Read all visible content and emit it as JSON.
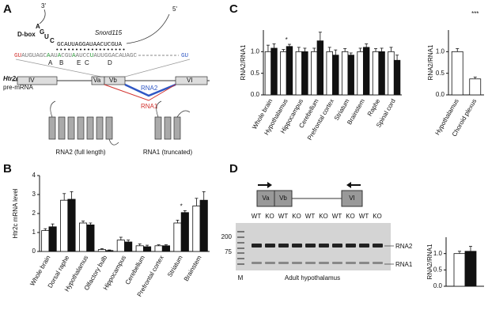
{
  "panel_labels": [
    "A",
    "B",
    "C",
    "D"
  ],
  "diagram_a": {
    "three_prime": "3'",
    "dbox": "D-box",
    "loop_letters": [
      "A",
      "G",
      "U",
      "C"
    ],
    "snord": "Snord115",
    "five_prime": "5'",
    "snord_seq": "GCAUUAGGAUAACUCGUA",
    "mrna_seq": [
      "GU",
      "AUGUAGC",
      "A",
      "AU",
      "A",
      "CGU",
      "A",
      "AUCC",
      "U",
      "AUUGGACAUAGC"
    ],
    "splice_right": "GU",
    "sites": [
      "A",
      "B",
      "E",
      "C",
      "D"
    ],
    "gene": "Htr2c",
    "gene_sub": "pre-mRNA",
    "exons": [
      "IV",
      "Va",
      "Vb",
      "VI"
    ],
    "rna2": "RNA2",
    "rna1": "RNA1",
    "protein_full": "RNA2 (full length)",
    "protein_trunc": "RNA1 (truncated)"
  },
  "panel_d": {
    "exons": [
      "Va",
      "Vb",
      "VI"
    ],
    "ladder": [
      "200",
      "75"
    ],
    "marker": "M",
    "lanes": [
      "WT",
      "KO",
      "WT",
      "KO",
      "WT",
      "KO",
      "WT",
      "KO",
      "WT",
      "KO"
    ],
    "bands": [
      "RNA2",
      "RNA1"
    ],
    "caption": "Adult hypothalamus"
  },
  "chart_data": [
    {
      "type": "bar",
      "ylabel": "Htr2c mRNA level",
      "categories": [
        "Whole brain",
        "Dorsal raphe",
        "Hypothalamus",
        "Olfactory bulb",
        "Hippocampus",
        "Cerebellum",
        "Prefrontal cortex",
        "Striatum",
        "Brainstem"
      ],
      "series": [
        {
          "color": "#ffffff",
          "values": [
            1.1,
            2.7,
            1.5,
            0.1,
            0.6,
            0.3,
            0.3,
            1.5,
            2.4
          ],
          "errors": [
            0.1,
            0.35,
            0.1,
            0.05,
            0.15,
            0.1,
            0.05,
            0.15,
            0.4
          ]
        },
        {
          "color": "#111111",
          "values": [
            1.3,
            2.75,
            1.4,
            0.05,
            0.5,
            0.25,
            0.3,
            2.05,
            2.7
          ],
          "errors": [
            0.15,
            0.4,
            0.1,
            0.03,
            0.1,
            0.08,
            0.05,
            0.1,
            0.45
          ]
        }
      ],
      "ylim": [
        0,
        4
      ],
      "yticks": [
        0,
        1,
        2,
        3,
        4
      ],
      "annotations": [
        "*"
      ]
    },
    {
      "type": "bar",
      "ylabel": "RNA2/RNA1",
      "categories": [
        "Whole brain",
        "Hypothalamus",
        "Hippocampus",
        "Cerebellum",
        "Prefrontal cortex",
        "Striatum",
        "Brainstem",
        "Raphe",
        "Spinal cord"
      ],
      "series": [
        {
          "color": "#ffffff",
          "values": [
            1.0,
            1.0,
            1.0,
            1.0,
            1.0,
            1.0,
            1.0,
            1.0,
            1.0
          ],
          "errors": [
            0.15,
            0.05,
            0.1,
            0.08,
            0.1,
            0.07,
            0.08,
            0.07,
            0.1
          ]
        },
        {
          "color": "#111111",
          "values": [
            1.08,
            1.12,
            1.0,
            1.25,
            0.92,
            0.92,
            1.1,
            1.0,
            0.8
          ],
          "errors": [
            0.1,
            0.05,
            0.08,
            0.2,
            0.12,
            0.05,
            0.08,
            0.08,
            0.12
          ]
        }
      ],
      "ylim": [
        0,
        1.5
      ],
      "yticks": [
        {
          "value": 0,
          "label": "0.0"
        },
        {
          "value": 0.5,
          "label": "0.5"
        },
        {
          "value": 1,
          "label": "1.0"
        }
      ],
      "annotations": [
        "*"
      ]
    },
    {
      "type": "bar",
      "ylabel": "RNA2/RNA1",
      "categories": [
        "Hypothalamus",
        "Choroid plexus"
      ],
      "series": [
        {
          "color": "#ffffff",
          "values": [
            1.0,
            0.37
          ],
          "errors": [
            0.07,
            0.04
          ]
        }
      ],
      "ylim": [
        0,
        1.5
      ],
      "yticks": [
        {
          "value": 0,
          "label": "0.0"
        },
        {
          "value": 0.5,
          "label": "0.5"
        },
        {
          "value": 1,
          "label": "1.0"
        }
      ],
      "annotations": [
        "***"
      ]
    },
    {
      "type": "bar",
      "ylabel": "RNA2/RNA1",
      "categories": [
        null
      ],
      "series": [
        {
          "color": "#ffffff",
          "values": [
            1.0
          ],
          "errors": [
            0.07
          ]
        },
        {
          "color": "#111111",
          "values": [
            1.07
          ],
          "errors": [
            0.15
          ]
        }
      ],
      "ylim": [
        0,
        1.5
      ],
      "yticks": [
        {
          "value": 0,
          "label": "0.0"
        },
        {
          "value": 0.5,
          "label": "0.5"
        },
        {
          "value": 1,
          "label": "1.0"
        }
      ],
      "annotations": []
    }
  ]
}
